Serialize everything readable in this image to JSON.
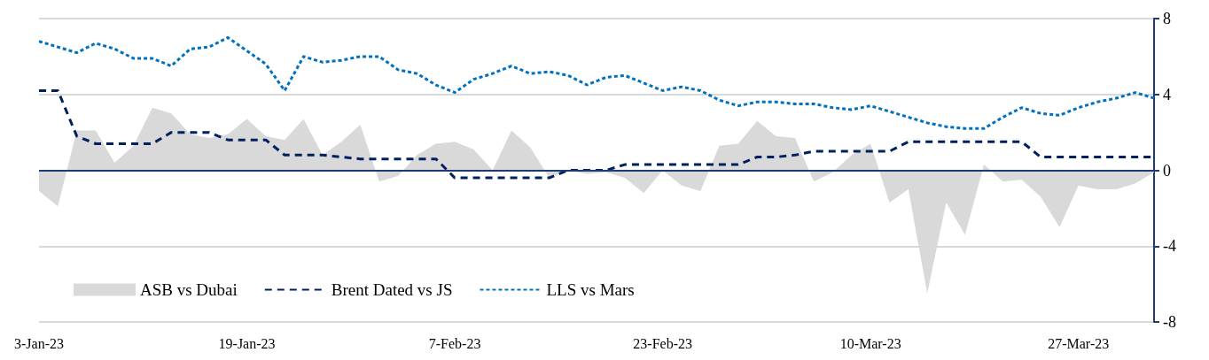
{
  "chart_data": {
    "type": "line",
    "categories": [
      "3-Jan-23",
      null,
      null,
      null,
      null,
      null,
      null,
      null,
      null,
      null,
      null,
      "19-Jan-23",
      null,
      null,
      null,
      null,
      null,
      null,
      null,
      null,
      null,
      null,
      "7-Feb-23",
      null,
      null,
      null,
      null,
      null,
      null,
      null,
      null,
      null,
      null,
      "23-Feb-23",
      null,
      null,
      null,
      null,
      null,
      null,
      null,
      null,
      null,
      null,
      "10-Mar-23",
      null,
      null,
      null,
      null,
      null,
      null,
      null,
      null,
      null,
      null,
      "27-Mar-23",
      null,
      null,
      null,
      null
    ],
    "series": [
      {
        "name": "ASB vs Dubai",
        "type": "area",
        "color": "#d9d9d9",
        "values": [
          -1.1,
          -1.9,
          2.1,
          2.1,
          0.4,
          1.3,
          3.3,
          3.0,
          1.9,
          1.7,
          1.9,
          2.7,
          1.8,
          1.6,
          2.7,
          0.8,
          1.5,
          2.4,
          -0.6,
          -0.3,
          0.8,
          1.4,
          1.5,
          1.1,
          0.0,
          2.1,
          1.2,
          -0.4,
          0.0,
          -0.2,
          -0.1,
          -0.4,
          -1.2,
          0.0,
          -0.8,
          -1.1,
          1.3,
          1.4,
          2.6,
          1.8,
          1.7,
          -0.6,
          -0.1,
          0.8,
          1.4,
          -1.7,
          -1.0,
          -6.5,
          -1.7,
          -3.4,
          0.3,
          -0.6,
          -0.5,
          -1.4,
          -3.0,
          -0.8,
          -1.0,
          -1.0,
          -0.7,
          -0.1
        ]
      },
      {
        "name": "Brent Dated vs JS",
        "line_style": "dashed",
        "color": "#002060",
        "values": [
          4.2,
          4.2,
          1.8,
          1.4,
          1.4,
          1.4,
          1.4,
          2.0,
          2.0,
          2.0,
          1.6,
          1.6,
          1.6,
          0.8,
          0.8,
          0.8,
          0.7,
          0.6,
          0.6,
          0.6,
          0.6,
          0.6,
          -0.4,
          -0.4,
          -0.4,
          -0.4,
          -0.4,
          -0.4,
          0.0,
          0.0,
          0.0,
          0.3,
          0.3,
          0.3,
          0.3,
          0.3,
          0.3,
          0.3,
          0.7,
          0.7,
          0.8,
          1.0,
          1.0,
          1.0,
          1.0,
          1.0,
          1.5,
          1.5,
          1.5,
          1.5,
          1.5,
          1.5,
          1.5,
          0.7,
          0.7,
          0.7,
          0.7,
          0.7,
          0.7,
          0.7
        ]
      },
      {
        "name": "LLS vs Mars",
        "line_style": "dotted",
        "color": "#0070c0",
        "values": [
          6.8,
          6.5,
          6.2,
          6.7,
          6.4,
          5.9,
          5.9,
          5.5,
          6.4,
          6.5,
          7.0,
          6.3,
          5.6,
          4.2,
          6.0,
          5.7,
          5.8,
          6.0,
          6.0,
          5.3,
          5.1,
          4.5,
          4.1,
          4.8,
          5.1,
          5.5,
          5.1,
          5.2,
          5.0,
          4.5,
          4.9,
          5.0,
          4.6,
          4.2,
          4.4,
          4.2,
          3.7,
          3.4,
          3.6,
          3.6,
          3.5,
          3.5,
          3.3,
          3.2,
          3.4,
          3.1,
          2.8,
          2.5,
          2.3,
          2.2,
          2.2,
          2.8,
          3.3,
          3.0,
          2.9,
          3.3,
          3.6,
          3.8,
          4.1,
          3.8
        ]
      }
    ],
    "ylim": [
      -8,
      8
    ],
    "yticks": [
      -8,
      -4,
      0,
      4,
      8
    ],
    "grid": "y",
    "legend": "bottom left",
    "marker": "none",
    "ref_lines": [
      {
        "axis": "y",
        "value": 0,
        "color": "#1f3b73"
      }
    ]
  }
}
